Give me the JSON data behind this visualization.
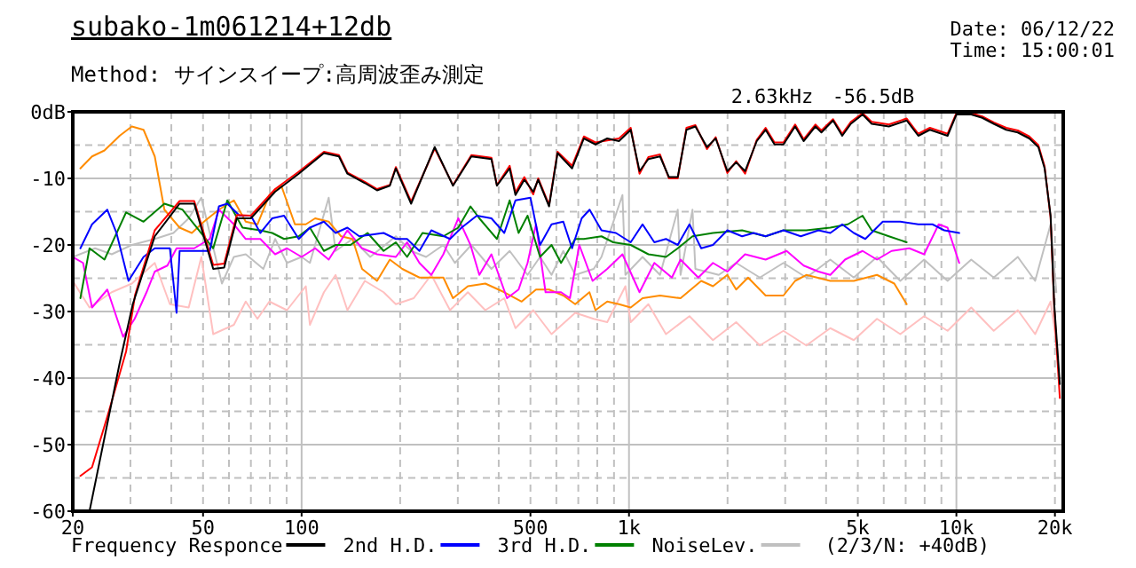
{
  "chart_data": {
    "type": "line",
    "title": "subako-1m061214+12db",
    "subtitle": "Method:  サインスイープ:高周波歪み測定",
    "annotations": [
      "Date: 06/12/22",
      "Time: 15:00:01",
      "2.63kHz",
      "-56.5dB",
      "(2/3/N: +40dB)"
    ],
    "log": "x",
    "grid": true,
    "legend": "bottom",
    "xlim": [
      20,
      21200
    ],
    "ylim": [
      -60,
      0
    ],
    "xticks": [
      20,
      50,
      100,
      500,
      {
        "value": 1000,
        "label": "1k"
      },
      {
        "value": 5000,
        "label": "5k"
      },
      {
        "value": 10000,
        "label": "10k"
      },
      {
        "value": 20000,
        "label": "20k"
      }
    ],
    "yticks": [
      {
        "value": 0,
        "label": "0dB"
      },
      {
        "value": -10,
        "label": "-10"
      },
      {
        "value": -20,
        "label": "-20"
      },
      {
        "value": -30,
        "label": "-30"
      },
      {
        "value": -40,
        "label": "-40"
      },
      {
        "value": -50,
        "label": "-50"
      },
      {
        "value": -60,
        "label": "-60"
      }
    ],
    "series": [
      {
        "color": "#ffc0c0",
        "x": [
          20,
          22.5,
          26.3,
          30.3,
          35.6,
          39.6,
          45.2,
          49.4,
          53.7,
          62.1,
          67.5,
          73.3,
          79.7,
          90.2,
          103,
          106,
          117,
          127,
          138,
          156,
          178,
          194,
          220,
          249,
          284,
          322,
          364,
          416,
          450,
          510,
          580,
          685,
          780,
          858,
          975,
          1012,
          1146,
          1297,
          1530,
          1805,
          2125,
          2510,
          2963,
          3480,
          4120,
          4860,
          5720,
          6740,
          7970,
          9400,
          11100,
          13000,
          15400,
          17400,
          19400,
          20500
        ],
        "values": [
          -25.4,
          -29.4,
          -27.1,
          -25.8,
          -22.7,
          -28.9,
          -29.4,
          -21.8,
          -33.4,
          -32,
          -28.5,
          -31.1,
          -28.5,
          -29.8,
          -26.2,
          -32,
          -27.1,
          -24.5,
          -29.8,
          -25.4,
          -27.1,
          -28.9,
          -28,
          -24.5,
          -29.8,
          -27.1,
          -29.8,
          -28,
          -32.5,
          -29.8,
          -33.4,
          -30.2,
          -31.1,
          -31.6,
          -26.2,
          -31.6,
          -28.9,
          -33.4,
          -30.7,
          -34.3,
          -31.6,
          -35.1,
          -32.9,
          -35.1,
          -32.5,
          -34.3,
          -31.1,
          -33.4,
          -30.7,
          -32.9,
          -29.4,
          -32.9,
          -29.8,
          -33.4,
          -28.5,
          -36.9
        ]
      },
      {
        "name": "NoiseLev.",
        "color": "#c0c0c0",
        "x": [
          20,
          23.4,
          26.3,
          30.3,
          35.6,
          40.6,
          45.2,
          49.4,
          52.4,
          57.1,
          62.1,
          67.5,
          76.4,
          83,
          90.2,
          100,
          106,
          121,
          127,
          143,
          162,
          194,
          216,
          240,
          271,
          294,
          330,
          380,
          432,
          490,
          535,
          580,
          630,
          685,
          780,
          824,
          955,
          975,
          1100,
          1244,
          1409,
          1437,
          1563,
          1595,
          1880,
          2125,
          2510,
          2963,
          3480,
          4120,
          4860,
          5720,
          6740,
          7970,
          9400,
          11100,
          13000,
          15400,
          17400,
          19400,
          20200
        ],
        "values": [
          -21.8,
          -20.5,
          -21.4,
          -20,
          -19.1,
          -18.2,
          -16,
          -12.9,
          -18.2,
          -25.8,
          -21.8,
          -21.4,
          -23.6,
          -19.1,
          -22.7,
          -21.8,
          -22.7,
          -12.9,
          -20.9,
          -19.1,
          -21.8,
          -18.7,
          -20.9,
          -21.8,
          -20,
          -22.7,
          -20,
          -23.6,
          -20.9,
          -24.5,
          -21.8,
          -24.5,
          -20.9,
          -24.5,
          -23.6,
          -21.8,
          -12.5,
          -24.5,
          -21.8,
          -24.5,
          -14.7,
          -24.5,
          -14.7,
          -23.6,
          -24.5,
          -22.7,
          -24.9,
          -22.7,
          -24.9,
          -22.2,
          -24.9,
          -21.8,
          -25.4,
          -22.2,
          -25.4,
          -22.2,
          -24.9,
          -21.8,
          -25.4,
          -16.9,
          -27.1
        ]
      },
      {
        "color": "#ff8c00",
        "x": [
          21.1,
          22.9,
          25,
          27.8,
          30.3,
          32.9,
          35.6,
          38.1,
          42.4,
          46.2,
          50.3,
          55.9,
          62.1,
          67.5,
          73.3,
          79.7,
          86.7,
          95.4,
          103,
          110,
          121,
          132,
          143,
          153,
          170,
          186,
          203,
          229,
          271,
          290,
          322,
          364,
          416,
          470,
          520,
          570,
          630,
          685,
          757,
          790,
          858,
          932,
          1012,
          1100,
          1244,
          1437,
          1662,
          1805,
          1997,
          2125,
          2310,
          2614,
          2963,
          3217,
          3480,
          4120,
          4860,
          5720,
          6460,
          7050
        ],
        "values": [
          -8.5,
          -6.7,
          -5.8,
          -3.6,
          -2.2,
          -2.7,
          -6.7,
          -14.7,
          -17.4,
          -18.2,
          -16.5,
          -14.7,
          -13.3,
          -16.5,
          -16.9,
          -12.5,
          -11.1,
          -16.9,
          -16.9,
          -16,
          -16.5,
          -18.7,
          -19.1,
          -23.6,
          -25.4,
          -22.2,
          -23.6,
          -24.9,
          -24.9,
          -28,
          -26.2,
          -25.8,
          -27.1,
          -28.5,
          -26.7,
          -26.7,
          -27.6,
          -28.9,
          -27.1,
          -29.8,
          -28.5,
          -28.9,
          -29.4,
          -28,
          -27.6,
          -28,
          -25.4,
          -26.2,
          -24.5,
          -26.7,
          -24.9,
          -27.6,
          -27.6,
          -25.4,
          -24.5,
          -25.4,
          -25.4,
          -24.5,
          -25.8,
          -28.9
        ]
      },
      {
        "color": "#ff00ff",
        "x": [
          20,
          21.5,
          22.9,
          25.5,
          28.5,
          30.9,
          33.6,
          35.6,
          38.9,
          41.5,
          47,
          52.4,
          55.9,
          62.1,
          67.5,
          74.8,
          83,
          90.2,
          100,
          110,
          121,
          138,
          153,
          170,
          194,
          210,
          229,
          249,
          271,
          301,
          328,
          349,
          380,
          424,
          460,
          490,
          520,
          556,
          620,
          660,
          705,
          774,
          858,
          955,
          1077,
          1195,
          1352,
          1437,
          1628,
          1805,
          1997,
          2263,
          2614,
          3030,
          3416,
          3790,
          4120,
          4570,
          5170,
          5720,
          6340,
          7180,
          7970,
          8830,
          9400,
          10200
        ],
        "values": [
          -21.8,
          -22.7,
          -29.4,
          -26.7,
          -33.8,
          -31.1,
          -27.1,
          -24,
          -23.1,
          -20.5,
          -20.5,
          -19.1,
          -14.7,
          -16.9,
          -19.1,
          -19.1,
          -21.4,
          -20.5,
          -21.8,
          -20.5,
          -22.2,
          -17.8,
          -20.5,
          -21.4,
          -21.8,
          -19.6,
          -22.7,
          -24.5,
          -21.4,
          -16,
          -20,
          -24.5,
          -21.4,
          -28,
          -26.7,
          -22.7,
          -16.9,
          -27.1,
          -27.1,
          -28,
          -20,
          -25.4,
          -23.6,
          -21.4,
          -27.1,
          -22.7,
          -24.9,
          -22.2,
          -24.9,
          -22.7,
          -24,
          -21.4,
          -22.2,
          -20.9,
          -23.1,
          -24,
          -24.5,
          -22.2,
          -20.9,
          -22.2,
          -20.9,
          -20.5,
          -21.4,
          -16.9,
          -17.4,
          -22.7
        ]
      },
      {
        "name": "3rd H.D.",
        "color": "#008000",
        "x": [
          21.1,
          22.5,
          25,
          29.1,
          32.9,
          38.1,
          43.3,
          47,
          53.7,
          59.3,
          66,
          74.8,
          81.3,
          88.4,
          98,
          106,
          117,
          127,
          141,
          159,
          178,
          194,
          210,
          234,
          271,
          301,
          328,
          349,
          395,
          432,
          460,
          490,
          535,
          580,
          620,
          685,
          728,
          824,
          895,
          1012,
          1146,
          1297,
          1409,
          1563,
          1805,
          2215,
          2614,
          2963,
          3480,
          4120,
          4660,
          5170,
          5510,
          6220,
          7050
        ],
        "values": [
          -28,
          -20.5,
          -22.2,
          -15.1,
          -16.5,
          -13.8,
          -14.7,
          -16.9,
          -20.5,
          -13.3,
          -17.4,
          -17.8,
          -18.2,
          -19.1,
          -18.7,
          -17.4,
          -20.9,
          -20,
          -20,
          -18.2,
          -20.9,
          -19.6,
          -21.8,
          -18.2,
          -18.7,
          -17.4,
          -14.2,
          -16,
          -19.1,
          -13.3,
          -18.2,
          -15.6,
          -21.8,
          -20,
          -22.7,
          -19.1,
          -19.1,
          -18.7,
          -19.6,
          -20,
          -21.4,
          -21.8,
          -20.5,
          -18.7,
          -18.2,
          -17.8,
          -18.7,
          -17.8,
          -17.8,
          -17.4,
          -16.9,
          -15.6,
          -17.8,
          -18.7,
          -19.6
        ]
      },
      {
        "name": "2nd H.D.",
        "color": "#0000ff",
        "x": [
          21.1,
          22.9,
          25.5,
          27.2,
          29.6,
          32.9,
          35.6,
          39.6,
          41.5,
          42.4,
          46.2,
          52.4,
          55.9,
          59.3,
          64.6,
          70,
          74.8,
          81.3,
          88.4,
          98,
          106,
          117,
          127,
          138,
          150,
          178,
          194,
          210,
          229,
          249,
          284,
          308,
          343,
          380,
          416,
          450,
          500,
          535,
          580,
          630,
          670,
          717,
          758,
          824,
          912,
          1012,
          1100,
          1195,
          1297,
          1409,
          1530,
          1662,
          1805,
          1997,
          2215,
          2404,
          2614,
          2963,
          3347,
          3790,
          4120,
          4480,
          4860,
          5270,
          5960,
          6740,
          7650,
          8450,
          9180,
          10200
        ],
        "values": [
          -20.5,
          -16.9,
          -14.7,
          -18.2,
          -25.4,
          -21.8,
          -20.5,
          -20.5,
          -30.2,
          -20.9,
          -20.9,
          -20.9,
          -14.2,
          -13.8,
          -15.6,
          -15.6,
          -18.2,
          -16,
          -15.6,
          -19.1,
          -17.4,
          -16.5,
          -18.2,
          -17.4,
          -18.7,
          -18.2,
          -19.1,
          -19.1,
          -20.9,
          -17.8,
          -19.1,
          -17.4,
          -15.6,
          -16,
          -18.2,
          -13.3,
          -12.9,
          -20,
          -16.9,
          -16.5,
          -20.5,
          -16,
          -14.7,
          -17.8,
          -18.2,
          -19.6,
          -16.9,
          -19.6,
          -19.1,
          -20,
          -16.9,
          -20.5,
          -20,
          -17.8,
          -18.7,
          -18.2,
          -18.7,
          -17.8,
          -18.7,
          -17.8,
          -18.2,
          -16.9,
          -18.2,
          -19.1,
          -16.5,
          -16.5,
          -16.9,
          -16.9,
          -17.8,
          -18.2
        ]
      },
      {
        "color": "#ff0000",
        "x": [
          21.1,
          22.9,
          25.5,
          29.1,
          31,
          35.6,
          42.4,
          47,
          53.7,
          58,
          63.4,
          70,
          83,
          98,
          117,
          130,
          138,
          156,
          170,
          186,
          194,
          216,
          255,
          290,
          330,
          380,
          395,
          432,
          450,
          479,
          510,
          528,
          570,
          605,
          670,
          728,
          790,
          858,
          932,
          1012,
          1077,
          1146,
          1244,
          1324,
          1409,
          1498,
          1595,
          1731,
          1840,
          1997,
          2125,
          2263,
          2456,
          2614,
          2783,
          2963,
          3217,
          3416,
          3710,
          3870,
          4200,
          4480,
          4760,
          5170,
          5510,
          6220,
          7050,
          7650,
          8300,
          9400,
          10000,
          11100,
          12000,
          13000,
          14200,
          15400,
          16700,
          17800,
          18600,
          19400,
          19900,
          20700
        ],
        "values": [
          -54.7,
          -53.4,
          -45.8,
          -36,
          -27.5,
          -17.8,
          -13.4,
          -13.4,
          -23,
          -22.8,
          -15.5,
          -15.6,
          -11.6,
          -9,
          -6,
          -6.5,
          -9.1,
          -10.5,
          -11.6,
          -11,
          -8.3,
          -13.5,
          -5.5,
          -11,
          -6.5,
          -6.9,
          -11,
          -8.1,
          -12.1,
          -9.8,
          -12.4,
          -10,
          -14,
          -6,
          -8.1,
          -3.7,
          -4.6,
          -4.3,
          -4,
          -2.4,
          -9.3,
          -6.8,
          -6.4,
          -10,
          -10,
          -2.4,
          -2,
          -5.6,
          -3.8,
          -9.2,
          -7.4,
          -9.3,
          -4.2,
          -2.4,
          -4.6,
          -4.6,
          -1.9,
          -4.1,
          -1.9,
          -2.8,
          -1.1,
          -3.3,
          -1.5,
          -0.2,
          -1.5,
          -1.9,
          -1,
          -3.3,
          -2.4,
          -3.3,
          -0.2,
          -0.2,
          -0.7,
          -1.6,
          -2.4,
          -2.8,
          -3.7,
          -5,
          -8.2,
          -15.9,
          -29.5,
          -43
        ]
      },
      {
        "name": "Frequency Responce",
        "color": "#000000",
        "x": [
          22.5,
          27.8,
          30.5,
          35.6,
          42.4,
          47,
          53.7,
          58,
          63.4,
          70,
          83,
          98,
          117,
          130,
          138,
          156,
          170,
          186,
          194,
          216,
          255,
          290,
          330,
          380,
          395,
          432,
          450,
          479,
          510,
          528,
          570,
          605,
          670,
          728,
          790,
          858,
          932,
          1012,
          1077,
          1146,
          1244,
          1324,
          1409,
          1498,
          1595,
          1731,
          1840,
          1997,
          2125,
          2263,
          2456,
          2614,
          2783,
          2963,
          3217,
          3416,
          3710,
          3870,
          4200,
          4480,
          4760,
          5170,
          5510,
          6220,
          7050,
          7650,
          8300,
          9400,
          10000,
          11100,
          12000,
          13000,
          14200,
          15400,
          16700,
          17800,
          18600,
          19400,
          19900,
          20700
        ],
        "values": [
          -60,
          -37.8,
          -28.9,
          -18.7,
          -13.8,
          -13.8,
          -23.6,
          -23.4,
          -16,
          -16,
          -12,
          -9.3,
          -6.2,
          -6.7,
          -9.3,
          -10.7,
          -11.8,
          -11.1,
          -8.5,
          -13.8,
          -5.3,
          -11.1,
          -6.7,
          -7.1,
          -11.1,
          -8.5,
          -12.5,
          -10.2,
          -12,
          -10.2,
          -14.2,
          -6.2,
          -8.5,
          -4,
          -4.9,
          -4,
          -4.4,
          -2.7,
          -8.9,
          -7.1,
          -6.7,
          -9.8,
          -9.8,
          -2.7,
          -2.2,
          -5.3,
          -4,
          -8.9,
          -7.6,
          -8.9,
          -4.4,
          -2.7,
          -4.9,
          -4.9,
          -2.2,
          -4.4,
          -2.2,
          -3.1,
          -1.3,
          -3.6,
          -1.8,
          -0.4,
          -1.8,
          -2.2,
          -1.3,
          -3.6,
          -2.7,
          -3.6,
          -0.4,
          -0.4,
          -0.9,
          -1.8,
          -2.7,
          -3.1,
          -4,
          -5.3,
          -8.5,
          -15.6,
          -28.9,
          -40.9
        ]
      }
    ]
  }
}
